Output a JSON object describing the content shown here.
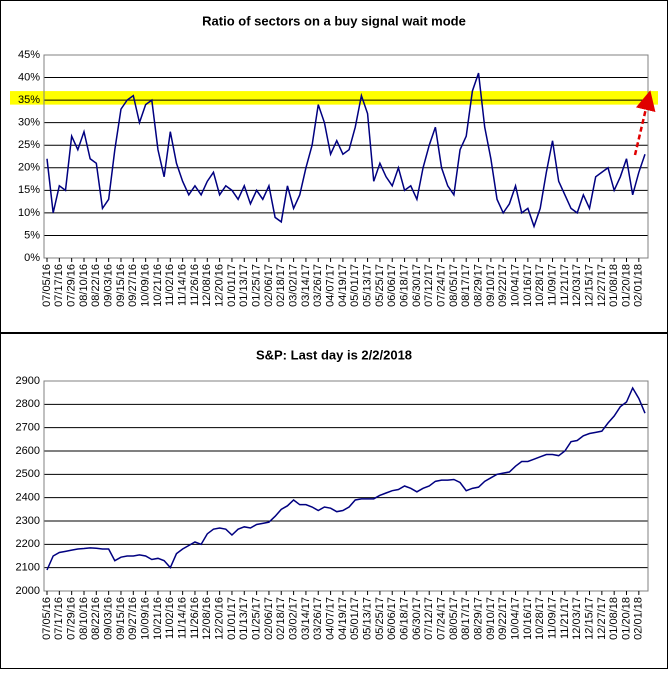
{
  "chart_data": [
    {
      "type": "line",
      "title": "Ratio of sectors on a buy signal wait mode",
      "color": "#000080",
      "grid": true,
      "categories": [
        "07/05/16",
        null,
        "07/17/16",
        null,
        "07/29/16",
        null,
        "08/10/16",
        null,
        "08/22/16",
        null,
        "09/03/16",
        null,
        "09/15/16",
        null,
        "09/27/16",
        null,
        "10/09/16",
        null,
        "10/21/16",
        null,
        "11/02/16",
        null,
        "11/14/16",
        null,
        "11/26/16",
        null,
        "12/08/16",
        null,
        "12/20/16",
        null,
        "01/01/17",
        null,
        "01/13/17",
        null,
        "01/25/17",
        null,
        "02/06/17",
        null,
        "02/18/17",
        null,
        "03/02/17",
        null,
        "03/14/17",
        null,
        "03/26/17",
        null,
        "04/07/17",
        null,
        "04/19/17",
        null,
        "05/01/17",
        null,
        "05/13/17",
        null,
        "05/25/17",
        null,
        "06/06/17",
        null,
        "06/18/17",
        null,
        "06/30/17",
        null,
        "07/12/17",
        null,
        "07/24/17",
        null,
        "08/05/17",
        null,
        "08/17/17",
        null,
        "08/29/17",
        null,
        "09/10/17",
        null,
        "09/22/17",
        null,
        "10/04/17",
        null,
        "10/16/17",
        null,
        "10/28/17",
        null,
        "11/09/17",
        null,
        "11/21/17",
        null,
        "12/03/17",
        null,
        "12/15/17",
        null,
        "12/27/17",
        null,
        "01/08/18",
        null,
        "01/20/18",
        null,
        "02/01/18",
        null
      ],
      "values": [
        22,
        10,
        16,
        15,
        27,
        24,
        28,
        22,
        21,
        11,
        13,
        24,
        33,
        35,
        36,
        30,
        34,
        35,
        24,
        18,
        28,
        21,
        17,
        14,
        16,
        14,
        17,
        19,
        14,
        16,
        15,
        13,
        16,
        12,
        15,
        13,
        16,
        9,
        8,
        16,
        11,
        14,
        20,
        25,
        34,
        30,
        23,
        26,
        23,
        24,
        29,
        36,
        32,
        17,
        21,
        18,
        16,
        20,
        15,
        16,
        13,
        20,
        25,
        29,
        20,
        16,
        14,
        24,
        27,
        37,
        41,
        29,
        22,
        13,
        10,
        12,
        16,
        10,
        11,
        7,
        11,
        19,
        26,
        17,
        14,
        11,
        10,
        14,
        11,
        18,
        19,
        20,
        15,
        18,
        22,
        14,
        19,
        23
      ],
      "ylim": [
        0,
        45
      ],
      "yticks": [
        {
          "value": 0,
          "label": "0%"
        },
        {
          "value": 5,
          "label": "5%"
        },
        {
          "value": 10,
          "label": "10%"
        },
        {
          "value": 15,
          "label": "15%"
        },
        {
          "value": 20,
          "label": "20%"
        },
        {
          "value": 25,
          "label": "25%"
        },
        {
          "value": 30,
          "label": "30%"
        },
        {
          "value": 35,
          "label": "35%"
        },
        {
          "value": 40,
          "label": "40%"
        },
        {
          "value": 45,
          "label": "45%"
        }
      ],
      "reference_band": {
        "from": 34,
        "to": 37,
        "color": "#ffff00"
      }
    },
    {
      "type": "line",
      "title": "S&P: Last day is 2/2/2018",
      "color": "#000080",
      "grid": true,
      "categories": [
        "07/05/16",
        null,
        "07/17/16",
        null,
        "07/29/16",
        null,
        "08/10/16",
        null,
        "08/22/16",
        null,
        "09/03/16",
        null,
        "09/15/16",
        null,
        "09/27/16",
        null,
        "10/09/16",
        null,
        "10/21/16",
        null,
        "11/02/16",
        null,
        "11/14/16",
        null,
        "11/26/16",
        null,
        "12/08/16",
        null,
        "12/20/16",
        null,
        "01/01/17",
        null,
        "01/13/17",
        null,
        "01/25/17",
        null,
        "02/06/17",
        null,
        "02/18/17",
        null,
        "03/02/17",
        null,
        "03/14/17",
        null,
        "03/26/17",
        null,
        "04/07/17",
        null,
        "04/19/17",
        null,
        "05/01/17",
        null,
        "05/13/17",
        null,
        "05/25/17",
        null,
        "06/06/17",
        null,
        "06/18/17",
        null,
        "06/30/17",
        null,
        "07/12/17",
        null,
        "07/24/17",
        null,
        "08/05/17",
        null,
        "08/17/17",
        null,
        "08/29/17",
        null,
        "09/10/17",
        null,
        "09/22/17",
        null,
        "10/04/17",
        null,
        "10/16/17",
        null,
        "10/28/17",
        null,
        "11/09/17",
        null,
        "11/21/17",
        null,
        "12/03/17",
        null,
        "12/15/17",
        null,
        "12/27/17",
        null,
        "01/08/18",
        null,
        "01/20/18",
        null,
        "02/01/18",
        null
      ],
      "values": [
        2090,
        2150,
        2165,
        2170,
        2175,
        2180,
        2182,
        2185,
        2183,
        2180,
        2180,
        2130,
        2145,
        2150,
        2150,
        2155,
        2150,
        2135,
        2140,
        2130,
        2100,
        2160,
        2180,
        2195,
        2210,
        2200,
        2245,
        2265,
        2270,
        2265,
        2240,
        2265,
        2275,
        2270,
        2285,
        2290,
        2295,
        2320,
        2350,
        2365,
        2390,
        2370,
        2370,
        2360,
        2345,
        2360,
        2355,
        2340,
        2345,
        2360,
        2390,
        2395,
        2395,
        2395,
        2410,
        2420,
        2430,
        2435,
        2450,
        2440,
        2425,
        2440,
        2450,
        2470,
        2475,
        2475,
        2478,
        2465,
        2430,
        2440,
        2445,
        2470,
        2485,
        2500,
        2505,
        2510,
        2535,
        2555,
        2555,
        2565,
        2575,
        2585,
        2585,
        2580,
        2600,
        2640,
        2645,
        2665,
        2675,
        2680,
        2685,
        2720,
        2750,
        2790,
        2810,
        2870,
        2825,
        2762
      ],
      "ylim": [
        2000,
        2900
      ],
      "yticks": [
        2000,
        2100,
        2200,
        2300,
        2400,
        2500,
        2600,
        2700,
        2800,
        2900
      ]
    }
  ]
}
